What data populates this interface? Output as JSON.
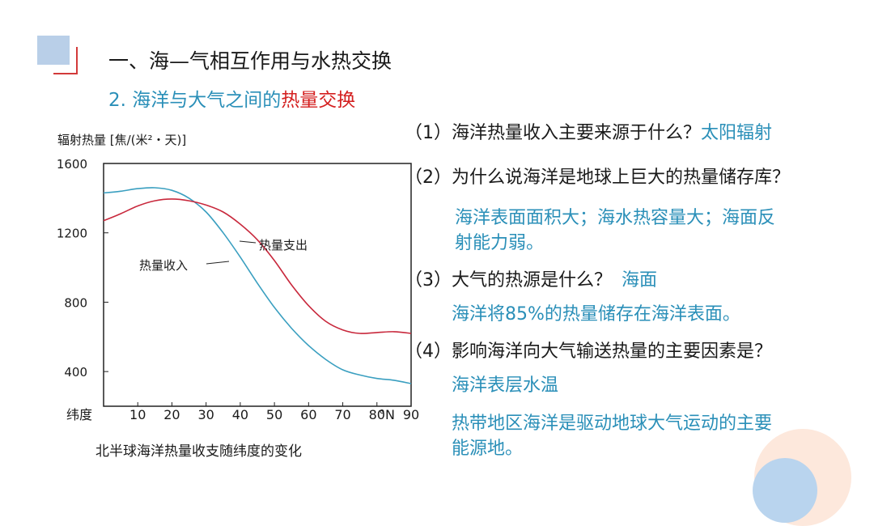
{
  "header": {
    "title": "一、海—气相互作用与水热交换",
    "subtitle_prefix": "2. 海洋与大气之间的",
    "subtitle_highlight": "热量交换"
  },
  "chart_data": {
    "type": "line",
    "title": "辐射热量 [焦/(米²・天)]",
    "caption": "北半球海洋热量收支随纬度的变化",
    "xlabel": "纬度",
    "x_unit": "°N",
    "x_ticks": [
      "10",
      "20",
      "30",
      "40",
      "50",
      "60",
      "70",
      "80",
      "90"
    ],
    "y_ticks": [
      "1600",
      "1200",
      "800",
      "400"
    ],
    "xlim": [
      0,
      90
    ],
    "ylim": [
      200,
      1600
    ],
    "series": [
      {
        "name": "热量收入",
        "color": "#3a9fc0",
        "x": [
          0,
          5,
          10,
          15,
          20,
          25,
          30,
          35,
          40,
          45,
          50,
          55,
          60,
          65,
          70,
          75,
          80,
          85,
          90
        ],
        "y": [
          1430,
          1440,
          1455,
          1460,
          1445,
          1400,
          1320,
          1200,
          1060,
          910,
          770,
          650,
          550,
          470,
          410,
          380,
          360,
          350,
          330
        ]
      },
      {
        "name": "热量支出",
        "color": "#c8283c",
        "x": [
          0,
          5,
          10,
          15,
          20,
          25,
          30,
          35,
          40,
          45,
          50,
          55,
          60,
          65,
          70,
          75,
          80,
          85,
          90
        ],
        "y": [
          1270,
          1310,
          1355,
          1385,
          1395,
          1385,
          1360,
          1320,
          1250,
          1160,
          1040,
          900,
          780,
          690,
          640,
          620,
          625,
          630,
          620
        ]
      }
    ]
  },
  "qa": [
    {
      "q": "（1）海洋热量收入主要来源于什么？",
      "inline_answer": "太阳辐射"
    },
    {
      "q": "（2）为什么说海洋是地球上巨大的热量储存库？",
      "answer_lines": [
        "海洋表面面积大；海水热容量大；海面反",
        "射能力弱。"
      ]
    },
    {
      "q": "（3）大气的热源是什么？",
      "inline_answer": "海面",
      "answer_lines": [
        "海洋将85%的热量储存在海洋表面。"
      ]
    },
    {
      "q": "（4）影响海洋向大气输送热量的主要因素是？",
      "answer_lines": [
        "海洋表层水温"
      ],
      "answer2_lines": [
        "热带地区海洋是驱动地球大气运动的主要",
        "能源地。"
      ]
    }
  ]
}
